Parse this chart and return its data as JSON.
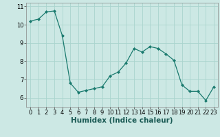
{
  "x": [
    0,
    1,
    2,
    3,
    4,
    5,
    6,
    7,
    8,
    9,
    10,
    11,
    12,
    13,
    14,
    15,
    16,
    17,
    18,
    19,
    20,
    21,
    22,
    23
  ],
  "y": [
    10.2,
    10.3,
    10.7,
    10.75,
    9.4,
    6.8,
    6.3,
    6.4,
    6.5,
    6.6,
    7.2,
    7.4,
    7.9,
    8.7,
    8.5,
    8.8,
    8.7,
    8.4,
    8.05,
    6.7,
    6.35,
    6.35,
    5.85,
    6.6
  ],
  "line_color": "#1a7a6e",
  "marker": "D",
  "marker_size": 2,
  "xlabel": "Humidex (Indice chaleur)",
  "xlim": [
    -0.5,
    23.5
  ],
  "ylim": [
    5.5,
    11.2
  ],
  "yticks": [
    6,
    7,
    8,
    9,
    10,
    11
  ],
  "xticks": [
    0,
    1,
    2,
    3,
    4,
    5,
    6,
    7,
    8,
    9,
    10,
    11,
    12,
    13,
    14,
    15,
    16,
    17,
    18,
    19,
    20,
    21,
    22,
    23
  ],
  "bg_color": "#cce8e4",
  "grid_color": "#aad4ce",
  "tick_fontsize": 6,
  "xlabel_fontsize": 7.5,
  "linewidth": 0.9
}
